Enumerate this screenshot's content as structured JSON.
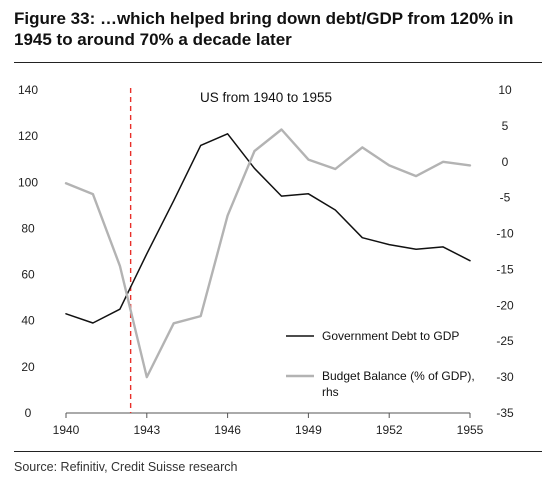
{
  "figure": {
    "title": "Figure 33: …which helped bring down debt/GDP from 120% in 1945 to around 70% a decade later",
    "source": "Source: Refinitiv, Credit Suisse research"
  },
  "chart_data": {
    "type": "line",
    "title": "US from 1940 to 1955",
    "x": [
      1940,
      1941,
      1942,
      1943,
      1944,
      1945,
      1946,
      1947,
      1948,
      1949,
      1950,
      1951,
      1952,
      1953,
      1954,
      1955
    ],
    "xticks": [
      1940,
      1943,
      1946,
      1949,
      1952,
      1955
    ],
    "xtick_labels": [
      "1940",
      "1943",
      "1946",
      "1949",
      "1952",
      "1955"
    ],
    "xlim": [
      1940,
      1955
    ],
    "ylim_left": [
      0,
      140
    ],
    "yticks_left": [
      0,
      20,
      40,
      60,
      80,
      100,
      120,
      140
    ],
    "ylim_right": [
      -35,
      10
    ],
    "yticks_right": [
      -35,
      -30,
      -25,
      -20,
      -15,
      -10,
      -5,
      0,
      5,
      10
    ],
    "vertical_marker": {
      "x": 1942.4,
      "style": "red-dashed"
    },
    "grid": false,
    "legend_position": "lower-right",
    "series": [
      {
        "name": "Government Debt to GDP",
        "axis": "left",
        "color": "#111111",
        "values": [
          43,
          39,
          45,
          69,
          92,
          116,
          121,
          106,
          94,
          95,
          88,
          76,
          73,
          71,
          72,
          66
        ]
      },
      {
        "name": "Budget Balance (% of GDP), rhs",
        "axis": "right",
        "color": "#b3b3b3",
        "values": [
          -3,
          -4.5,
          -14.5,
          -30,
          -22.5,
          -21.5,
          -7.5,
          1.5,
          4.5,
          0.3,
          -1,
          2,
          -0.5,
          -2,
          0,
          -0.5
        ]
      }
    ]
  }
}
